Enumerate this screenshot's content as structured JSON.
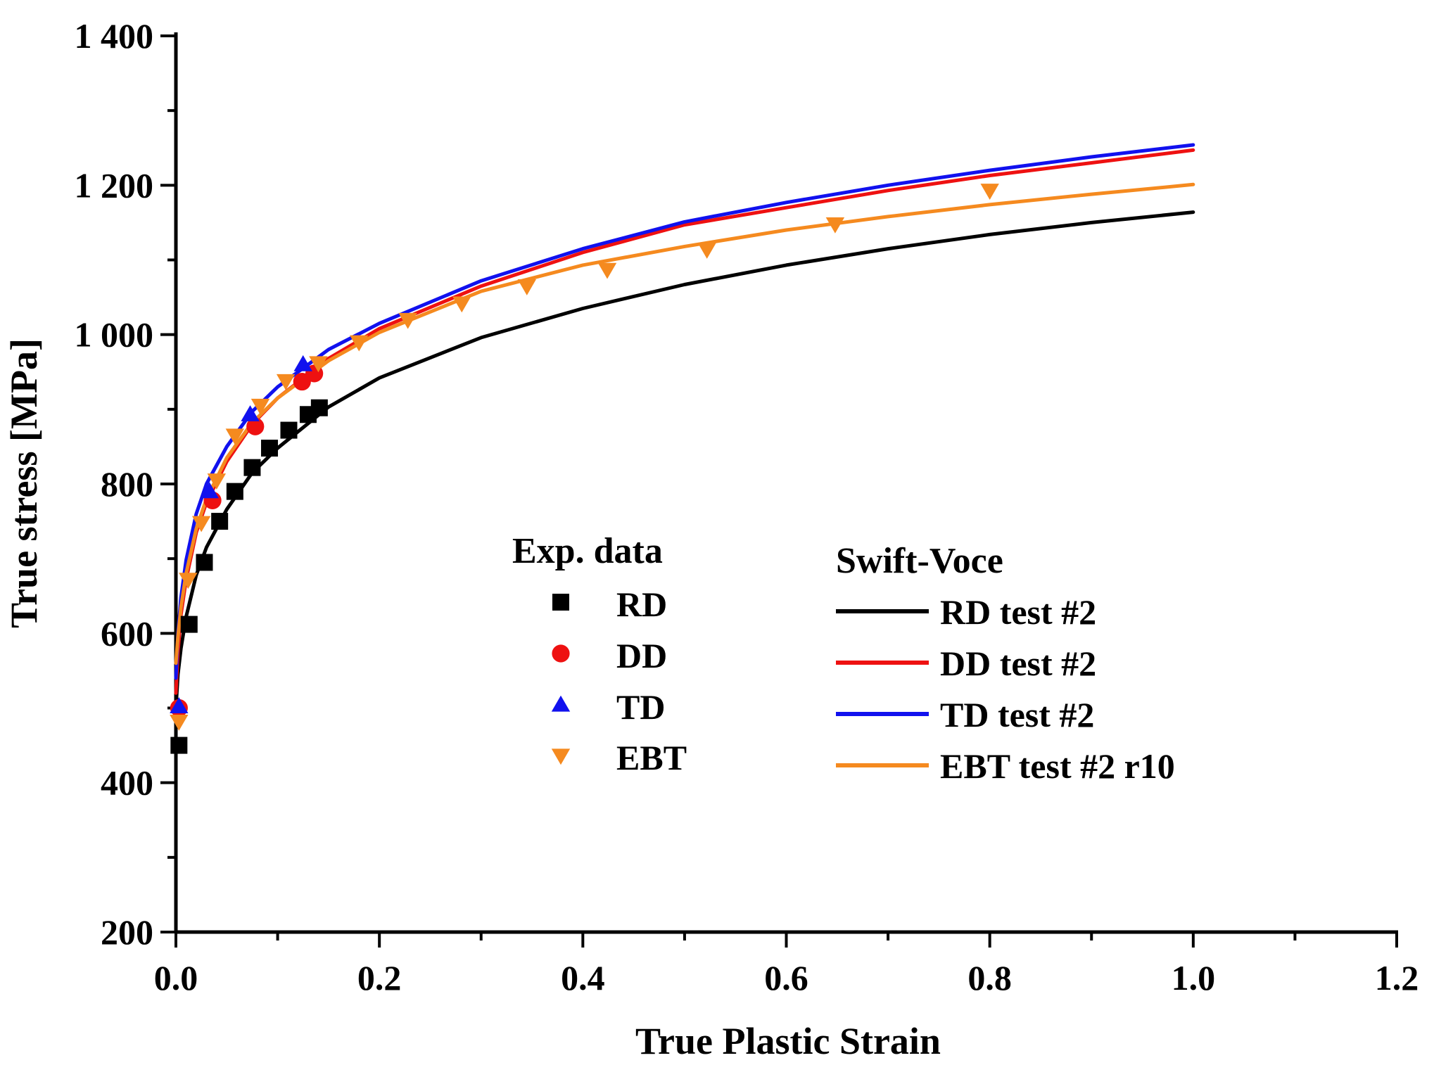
{
  "chart_data": {
    "type": "scatter",
    "title": "",
    "xlabel": "True Plastic Strain",
    "ylabel": "True stress [MPa]",
    "xlim": [
      0.0,
      1.2
    ],
    "ylim": [
      200,
      1400
    ],
    "xticks": [
      0.0,
      0.2,
      0.4,
      0.6,
      0.8,
      1.0,
      1.2
    ],
    "xtick_labels": [
      "0.0",
      "0.2",
      "0.4",
      "0.6",
      "0.8",
      "1.0",
      "1.2"
    ],
    "yticks": [
      200,
      400,
      600,
      800,
      1000,
      1200,
      1400
    ],
    "ytick_labels": [
      "200",
      "400",
      "600",
      "800",
      "1 000",
      "1 200",
      "1 400"
    ],
    "grid": false,
    "legend": {
      "exp_title": "Exp. data",
      "fit_title": "Swift-Voce"
    },
    "scatter_series": [
      {
        "name": "RD",
        "marker": "square",
        "color": "#000000",
        "x": [
          0.003,
          0.013,
          0.028,
          0.043,
          0.058,
          0.075,
          0.092,
          0.111,
          0.13,
          0.141
        ],
        "y": [
          450,
          612,
          695,
          750,
          790,
          822,
          848,
          872,
          893,
          902
        ]
      },
      {
        "name": "DD",
        "marker": "circle",
        "color": "#ee1111",
        "x": [
          0.003,
          0.036,
          0.078,
          0.124,
          0.136
        ],
        "y": [
          500,
          778,
          877,
          937,
          948
        ]
      },
      {
        "name": "TD",
        "marker": "triangle-up",
        "color": "#1111ee",
        "x": [
          0.003,
          0.033,
          0.073,
          0.125
        ],
        "y": [
          502,
          790,
          893,
          960
        ]
      },
      {
        "name": "EBT",
        "marker": "triangle-down",
        "color": "#f58a1f",
        "x": [
          0.003,
          0.012,
          0.025,
          0.04,
          0.058,
          0.083,
          0.108,
          0.14,
          0.18,
          0.228,
          0.281,
          0.345,
          0.424,
          0.522,
          0.648,
          0.8
        ],
        "y": [
          482,
          672,
          748,
          805,
          865,
          905,
          938,
          962,
          990,
          1020,
          1042,
          1065,
          1087,
          1114,
          1148,
          1193
        ]
      }
    ],
    "fit_series": [
      {
        "name": "RD test #2",
        "color": "#000000",
        "x": [
          0.0,
          0.002,
          0.005,
          0.01,
          0.02,
          0.03,
          0.05,
          0.075,
          0.1,
          0.15,
          0.2,
          0.3,
          0.4,
          0.5,
          0.6,
          0.7,
          0.8,
          0.9,
          1.0
        ],
        "y": [
          500,
          545,
          580,
          622,
          678,
          715,
          766,
          815,
          848,
          903,
          942,
          996,
          1035,
          1067,
          1093,
          1115,
          1134,
          1150,
          1164
        ]
      },
      {
        "name": "DD test #2",
        "color": "#ee1111",
        "x": [
          0.0,
          0.002,
          0.005,
          0.01,
          0.02,
          0.03,
          0.05,
          0.075,
          0.1,
          0.15,
          0.2,
          0.3,
          0.4,
          0.5,
          0.6,
          0.7,
          0.8,
          0.9,
          1.0
        ],
        "y": [
          520,
          575,
          625,
          672,
          735,
          775,
          830,
          880,
          915,
          968,
          1008,
          1065,
          1110,
          1147,
          1170,
          1193,
          1213,
          1230,
          1247
        ]
      },
      {
        "name": "TD test #2",
        "color": "#1111ee",
        "x": [
          0.0,
          0.002,
          0.005,
          0.01,
          0.02,
          0.03,
          0.05,
          0.075,
          0.1,
          0.15,
          0.2,
          0.3,
          0.4,
          0.5,
          0.6,
          0.7,
          0.8,
          0.9,
          1.0
        ],
        "y": [
          540,
          600,
          648,
          698,
          760,
          800,
          850,
          897,
          930,
          980,
          1015,
          1072,
          1115,
          1151,
          1177,
          1200,
          1220,
          1238,
          1254
        ]
      },
      {
        "name": "EBT test #2 r10",
        "color": "#f58a1f",
        "x": [
          0.0,
          0.002,
          0.005,
          0.01,
          0.02,
          0.03,
          0.05,
          0.075,
          0.1,
          0.15,
          0.2,
          0.3,
          0.4,
          0.5,
          0.6,
          0.7,
          0.8,
          0.9,
          1.0
        ],
        "y": [
          560,
          595,
          635,
          680,
          740,
          780,
          835,
          882,
          915,
          965,
          1003,
          1058,
          1093,
          1118,
          1140,
          1158,
          1174,
          1188,
          1201
        ]
      }
    ]
  }
}
